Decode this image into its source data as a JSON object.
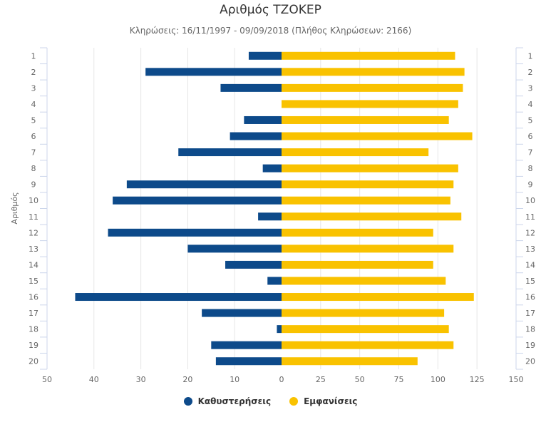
{
  "chart_data": {
    "type": "bar",
    "orientation": "horizontal",
    "title": "Αριθμός ΤΖΟΚΕΡ",
    "subtitle": "Κληρώσεις: 16/11/1997 - 09/09/2018 (Πλήθος Κληρώσεων: 2166)",
    "ylabel": "Αριθμός",
    "categories": [
      "1",
      "2",
      "3",
      "4",
      "5",
      "6",
      "7",
      "8",
      "9",
      "10",
      "11",
      "12",
      "13",
      "14",
      "15",
      "16",
      "17",
      "18",
      "19",
      "20"
    ],
    "series": [
      {
        "name": "Καθυστερήσεις",
        "color": "#0d4a8a",
        "axis_ticks": [
          50,
          40,
          30,
          20,
          10,
          0
        ],
        "xlim": [
          0,
          50
        ],
        "values": [
          7,
          29,
          13,
          0,
          8,
          11,
          22,
          4,
          33,
          36,
          5,
          37,
          20,
          12,
          3,
          44,
          17,
          1,
          15,
          14
        ]
      },
      {
        "name": "Εμφανίσεις",
        "color": "#f9c200",
        "axis_ticks": [
          0,
          25,
          50,
          75,
          100,
          125,
          150
        ],
        "xlim": [
          0,
          150
        ],
        "values": [
          111,
          117,
          116,
          113,
          107,
          122,
          94,
          113,
          110,
          108,
          115,
          97,
          110,
          97,
          105,
          123,
          104,
          107,
          110,
          87
        ]
      }
    ]
  }
}
